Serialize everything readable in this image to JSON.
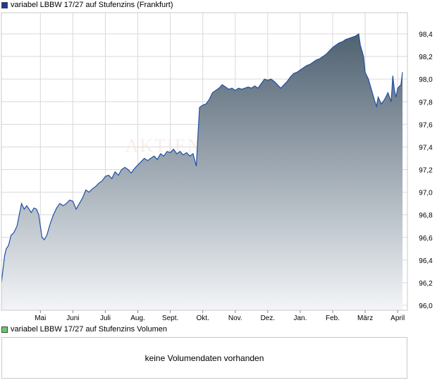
{
  "price_legend": {
    "label": "variabel LBBW 17/27 auf Stufenzins (Frankfurt)",
    "color": "#1f3a93"
  },
  "volume_legend": {
    "label": "variabel LBBW 17/27 auf Stufenzins Volumen",
    "color": "#66cc66"
  },
  "volume_panel": {
    "message": "keine Volumendaten vorhanden"
  },
  "watermark": "AKTIEN",
  "colors": {
    "line": "#1f4fa3",
    "fill_top": "#4f6171",
    "fill_bottom": "#f3f5f8",
    "grid": "#d9d9d9",
    "frame": "#c8c8c8"
  },
  "chart_data": {
    "type": "area",
    "title": "",
    "xlabel": "",
    "ylabel": "",
    "ylim": [
      96.0,
      98.5
    ],
    "y_ticks": [
      "98,4",
      "98,2",
      "98,0",
      "97,8",
      "97,6",
      "97,4",
      "97,2",
      "97,0",
      "96,8",
      "96,6",
      "96,4",
      "96,2",
      "96,0"
    ],
    "y_tick_values": [
      98.4,
      98.2,
      98.0,
      97.8,
      97.6,
      97.4,
      97.2,
      97.0,
      96.8,
      96.6,
      96.4,
      96.2,
      96.0
    ],
    "grid": true,
    "x_ticks": [
      {
        "label": "Mai",
        "t": 1.2
      },
      {
        "label": "Juni",
        "t": 2.2
      },
      {
        "label": "Juli",
        "t": 3.2
      },
      {
        "label": "Aug.",
        "t": 4.2
      },
      {
        "label": "Sept.",
        "t": 5.2
      },
      {
        "label": "Okt.",
        "t": 6.2
      },
      {
        "label": "Nov.",
        "t": 7.2
      },
      {
        "label": "Dez.",
        "t": 8.2
      },
      {
        "label": "Jan.",
        "t": 9.2
      },
      {
        "label": "Feb.",
        "t": 10.2
      },
      {
        "label": "März",
        "t": 11.2
      },
      {
        "label": "April",
        "t": 12.2
      }
    ],
    "series": [
      {
        "points": [
          [
            0.0,
            96.2
          ],
          [
            0.1,
            96.44
          ],
          [
            0.15,
            96.5
          ],
          [
            0.22,
            96.53
          ],
          [
            0.3,
            96.62
          ],
          [
            0.38,
            96.64
          ],
          [
            0.48,
            96.7
          ],
          [
            0.55,
            96.8
          ],
          [
            0.62,
            96.9
          ],
          [
            0.7,
            96.85
          ],
          [
            0.78,
            96.88
          ],
          [
            0.85,
            96.85
          ],
          [
            0.92,
            96.82
          ],
          [
            1.0,
            96.86
          ],
          [
            1.08,
            96.85
          ],
          [
            1.15,
            96.8
          ],
          [
            1.25,
            96.6
          ],
          [
            1.32,
            96.58
          ],
          [
            1.4,
            96.62
          ],
          [
            1.5,
            96.72
          ],
          [
            1.6,
            96.8
          ],
          [
            1.7,
            96.86
          ],
          [
            1.8,
            96.9
          ],
          [
            1.9,
            96.88
          ],
          [
            2.0,
            96.9
          ],
          [
            2.1,
            96.93
          ],
          [
            2.2,
            96.92
          ],
          [
            2.3,
            96.85
          ],
          [
            2.4,
            96.9
          ],
          [
            2.5,
            96.95
          ],
          [
            2.6,
            97.02
          ],
          [
            2.7,
            97.0
          ],
          [
            2.8,
            97.03
          ],
          [
            2.9,
            97.05
          ],
          [
            3.0,
            97.08
          ],
          [
            3.1,
            97.1
          ],
          [
            3.2,
            97.14
          ],
          [
            3.3,
            97.15
          ],
          [
            3.4,
            97.12
          ],
          [
            3.5,
            97.18
          ],
          [
            3.6,
            97.15
          ],
          [
            3.7,
            97.2
          ],
          [
            3.8,
            97.22
          ],
          [
            3.9,
            97.2
          ],
          [
            4.0,
            97.17
          ],
          [
            4.1,
            97.21
          ],
          [
            4.2,
            97.24
          ],
          [
            4.3,
            97.27
          ],
          [
            4.4,
            97.3
          ],
          [
            4.5,
            97.28
          ],
          [
            4.6,
            97.3
          ],
          [
            4.7,
            97.32
          ],
          [
            4.8,
            97.29
          ],
          [
            4.9,
            97.34
          ],
          [
            5.0,
            97.32
          ],
          [
            5.1,
            97.36
          ],
          [
            5.2,
            97.35
          ],
          [
            5.3,
            97.38
          ],
          [
            5.4,
            97.34
          ],
          [
            5.5,
            97.36
          ],
          [
            5.6,
            97.33
          ],
          [
            5.7,
            97.35
          ],
          [
            5.8,
            97.32
          ],
          [
            5.9,
            97.34
          ],
          [
            6.0,
            97.23
          ],
          [
            6.05,
            97.5
          ],
          [
            6.1,
            97.75
          ],
          [
            6.2,
            97.77
          ],
          [
            6.3,
            97.78
          ],
          [
            6.4,
            97.82
          ],
          [
            6.5,
            97.88
          ],
          [
            6.6,
            97.9
          ],
          [
            6.7,
            97.92
          ],
          [
            6.8,
            97.95
          ],
          [
            6.9,
            97.93
          ],
          [
            7.0,
            97.91
          ],
          [
            7.1,
            97.92
          ],
          [
            7.2,
            97.9
          ],
          [
            7.3,
            97.92
          ],
          [
            7.4,
            97.91
          ],
          [
            7.5,
            97.92
          ],
          [
            7.6,
            97.93
          ],
          [
            7.7,
            97.92
          ],
          [
            7.8,
            97.94
          ],
          [
            7.9,
            97.92
          ],
          [
            8.0,
            97.96
          ],
          [
            8.1,
            98.0
          ],
          [
            8.2,
            97.99
          ],
          [
            8.3,
            98.0
          ],
          [
            8.4,
            97.98
          ],
          [
            8.5,
            97.95
          ],
          [
            8.6,
            97.92
          ],
          [
            8.7,
            97.95
          ],
          [
            8.8,
            97.98
          ],
          [
            8.9,
            98.02
          ],
          [
            9.0,
            98.05
          ],
          [
            9.1,
            98.06
          ],
          [
            9.2,
            98.08
          ],
          [
            9.3,
            98.1
          ],
          [
            9.4,
            98.12
          ],
          [
            9.5,
            98.13
          ],
          [
            9.6,
            98.15
          ],
          [
            9.7,
            98.17
          ],
          [
            9.8,
            98.18
          ],
          [
            9.9,
            98.2
          ],
          [
            10.0,
            98.22
          ],
          [
            10.1,
            98.25
          ],
          [
            10.2,
            98.28
          ],
          [
            10.3,
            98.3
          ],
          [
            10.4,
            98.32
          ],
          [
            10.5,
            98.33
          ],
          [
            10.6,
            98.35
          ],
          [
            10.7,
            98.36
          ],
          [
            10.8,
            98.37
          ],
          [
            10.9,
            98.38
          ],
          [
            11.0,
            98.4
          ],
          [
            11.05,
            98.3
          ],
          [
            11.1,
            98.25
          ],
          [
            11.15,
            98.2
          ],
          [
            11.2,
            98.06
          ],
          [
            11.3,
            98.0
          ],
          [
            11.4,
            97.9
          ],
          [
            11.5,
            97.8
          ],
          [
            11.55,
            97.76
          ],
          [
            11.6,
            97.84
          ],
          [
            11.7,
            97.78
          ],
          [
            11.8,
            97.82
          ],
          [
            11.9,
            97.88
          ],
          [
            12.0,
            97.8
          ],
          [
            12.05,
            98.03
          ],
          [
            12.1,
            97.9
          ],
          [
            12.15,
            97.84
          ],
          [
            12.2,
            97.92
          ],
          [
            12.3,
            97.95
          ],
          [
            12.35,
            98.06
          ]
        ]
      }
    ]
  }
}
